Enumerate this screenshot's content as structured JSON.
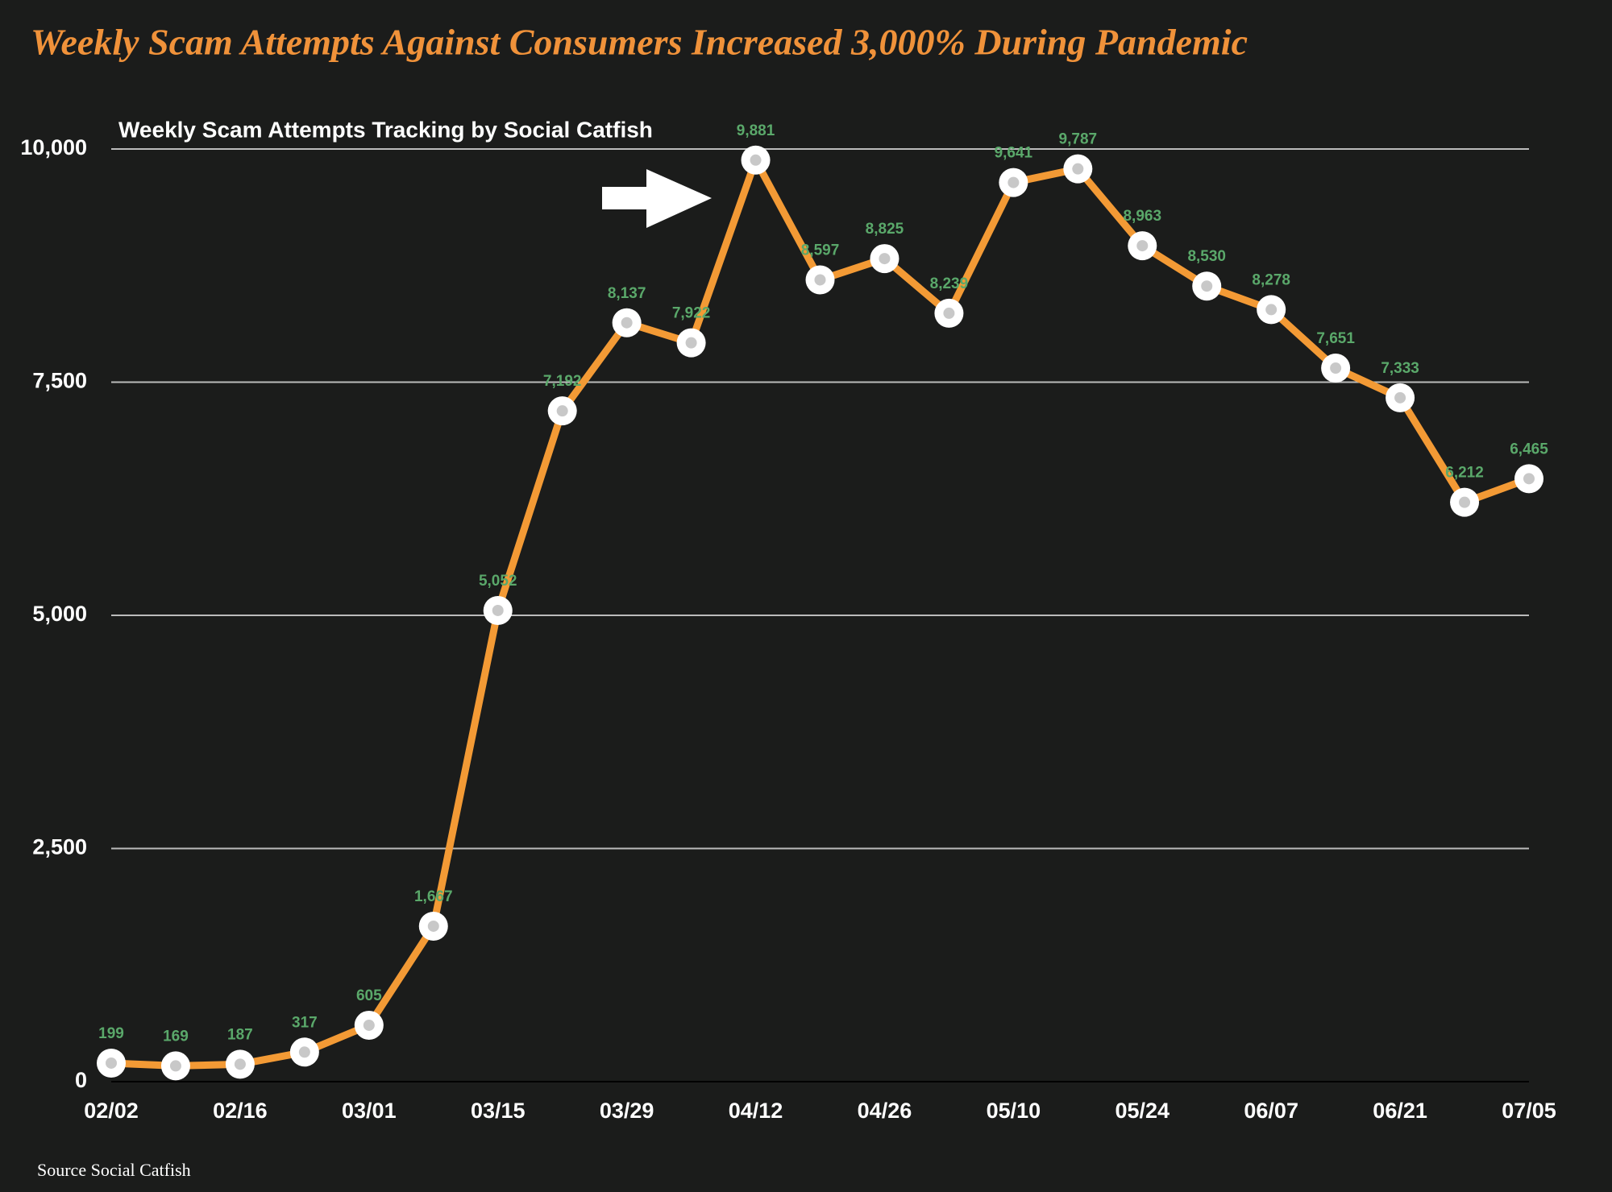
{
  "chart_data": {
    "type": "line",
    "title": "Weekly Scam Attempts Against Consumers Increased 3,000% During Pandemic",
    "subtitle": "Weekly Scam Attempts Tracking by Social Catfish",
    "source": "Source Social Catfish",
    "categories": [
      "02/02",
      null,
      "02/16",
      null,
      "03/01",
      null,
      "03/15",
      null,
      "03/29",
      null,
      "04/12",
      null,
      "04/26",
      null,
      "05/10",
      null,
      "05/24",
      null,
      "06/07",
      null,
      "06/21",
      null,
      "07/05"
    ],
    "values": [
      199,
      169,
      187,
      317,
      605,
      1667,
      5052,
      7192,
      8137,
      7922,
      9881,
      8597,
      8825,
      8239,
      9641,
      9787,
      8963,
      8530,
      8278,
      7651,
      7333,
      6212,
      6465
    ],
    "value_labels": [
      "199",
      "169",
      "187",
      "317",
      "605",
      "1,667",
      "5,052",
      "7,192",
      "8,137",
      "7,922",
      "9,881",
      "8,597",
      "8,825",
      "8,239",
      "9,641",
      "9,787",
      "8,963",
      "8,530",
      "8,278",
      "7,651",
      "7,333",
      "6,212",
      "6,465"
    ],
    "color": "#f39a35",
    "label_color": "#5aa86a",
    "ylim": [
      0,
      10000
    ],
    "yticks": [
      0,
      {
        "value": 2500,
        "label": "2,500"
      },
      {
        "value": 5000,
        "label": "5,000"
      },
      {
        "value": 7500,
        "label": "7,500"
      },
      {
        "value": 10000,
        "label": "10,000"
      }
    ],
    "grid": true
  }
}
